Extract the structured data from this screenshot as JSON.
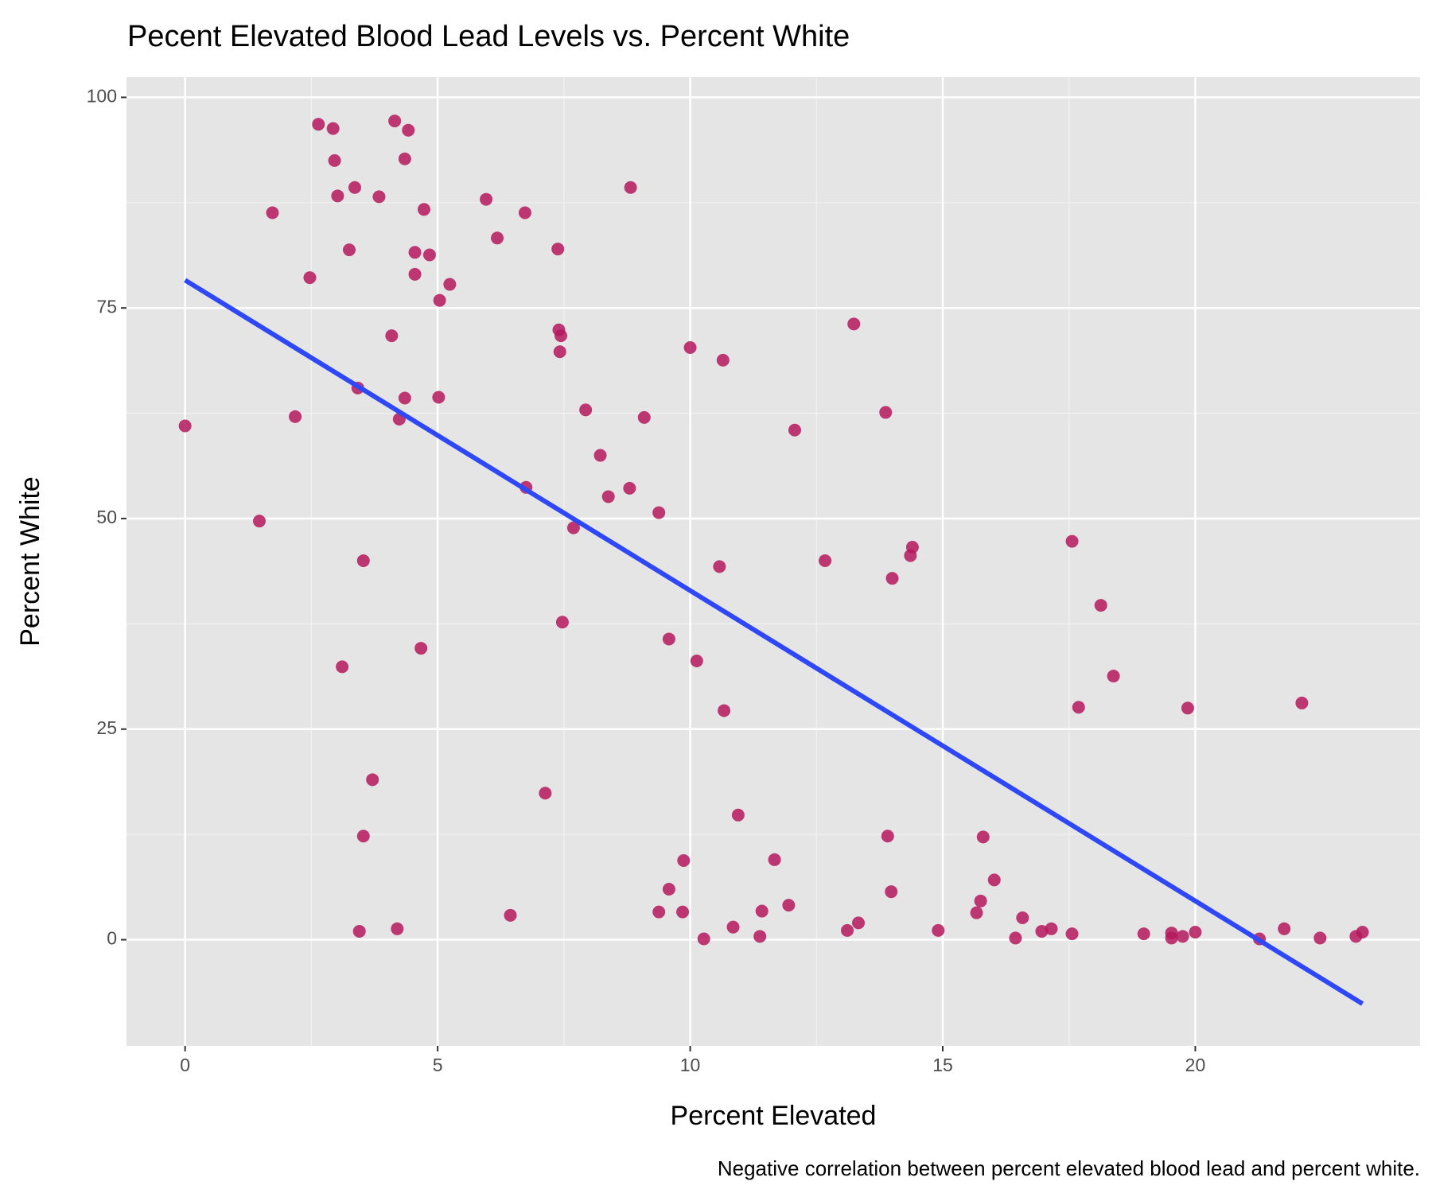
{
  "chart_data": {
    "type": "scatter",
    "title": "Pecent Elevated Blood Lead Levels vs. Percent White",
    "x_label": "Percent Elevated",
    "y_label": "Percent White",
    "caption": "Negative correlation between percent elevated blood lead and percent white.",
    "xlim": [
      -1.16,
      24.45
    ],
    "ylim": [
      -12.6,
      102.4
    ],
    "xticks": [
      0,
      5,
      10,
      15,
      20
    ],
    "yticks": [
      0,
      25,
      50,
      75,
      100
    ],
    "grid": true,
    "series": [
      {
        "color": "#b5195e",
        "x": [
          0.0,
          1.47,
          1.73,
          2.18,
          2.47,
          2.64,
          2.93,
          2.96,
          3.02,
          3.11,
          3.25,
          3.36,
          3.42,
          3.45,
          3.53,
          3.53,
          3.71,
          3.84,
          4.09,
          4.15,
          4.2,
          4.24,
          4.35,
          4.35,
          4.42,
          4.55,
          4.55,
          4.67,
          4.73,
          4.84,
          5.02,
          5.04,
          5.24,
          5.96,
          6.18,
          6.44,
          6.73,
          6.75,
          7.13,
          7.38,
          7.4,
          7.44,
          7.42,
          7.47,
          7.69,
          7.93,
          8.22,
          8.38,
          8.8,
          8.82,
          9.09,
          9.38,
          9.38,
          9.58,
          9.58,
          9.87,
          9.85,
          10.0,
          10.13,
          10.27,
          10.58,
          10.65,
          10.67,
          10.85,
          10.95,
          11.38,
          11.42,
          11.67,
          11.95,
          12.07,
          12.67,
          13.11,
          13.24,
          13.33,
          13.87,
          13.91,
          13.98,
          14.0,
          14.36,
          14.4,
          14.91,
          15.67,
          15.75,
          15.8,
          16.02,
          16.44,
          16.58,
          16.96,
          17.15,
          17.56,
          17.56,
          17.69,
          18.13,
          18.38,
          18.98,
          19.53,
          19.53,
          19.75,
          19.85,
          20.0,
          21.27,
          21.76,
          22.11,
          22.47,
          23.18,
          23.31
        ],
        "values": [
          61.0,
          49.7,
          86.3,
          62.1,
          78.6,
          96.8,
          96.3,
          92.5,
          88.3,
          32.4,
          81.9,
          89.3,
          65.5,
          1.0,
          45.0,
          12.3,
          19.0,
          88.2,
          71.7,
          97.2,
          1.3,
          61.8,
          64.3,
          92.7,
          96.1,
          81.6,
          79.0,
          34.6,
          86.7,
          81.3,
          64.4,
          75.9,
          77.8,
          87.9,
          83.3,
          2.9,
          86.3,
          53.7,
          17.4,
          82.0,
          72.4,
          71.7,
          69.8,
          37.7,
          48.9,
          62.9,
          57.5,
          52.6,
          53.6,
          89.3,
          62.0,
          50.7,
          3.3,
          35.7,
          6.0,
          9.4,
          3.3,
          70.3,
          33.1,
          0.1,
          44.3,
          68.8,
          27.2,
          1.5,
          14.8,
          0.4,
          3.4,
          9.5,
          4.1,
          60.5,
          45.0,
          1.1,
          73.1,
          2.0,
          62.6,
          12.3,
          5.7,
          42.9,
          45.6,
          46.6,
          1.1,
          3.2,
          4.6,
          12.2,
          7.1,
          0.2,
          2.6,
          1.0,
          1.3,
          47.3,
          0.7,
          27.6,
          39.7,
          31.3,
          0.7,
          0.8,
          0.2,
          0.4,
          27.5,
          0.9,
          0.1,
          1.3,
          28.1,
          0.2,
          0.4,
          0.9
        ]
      }
    ],
    "trend_line": {
      "color": "#2e48f7",
      "x": [
        0,
        23.31
      ],
      "values": [
        78.3,
        -7.6
      ]
    }
  }
}
